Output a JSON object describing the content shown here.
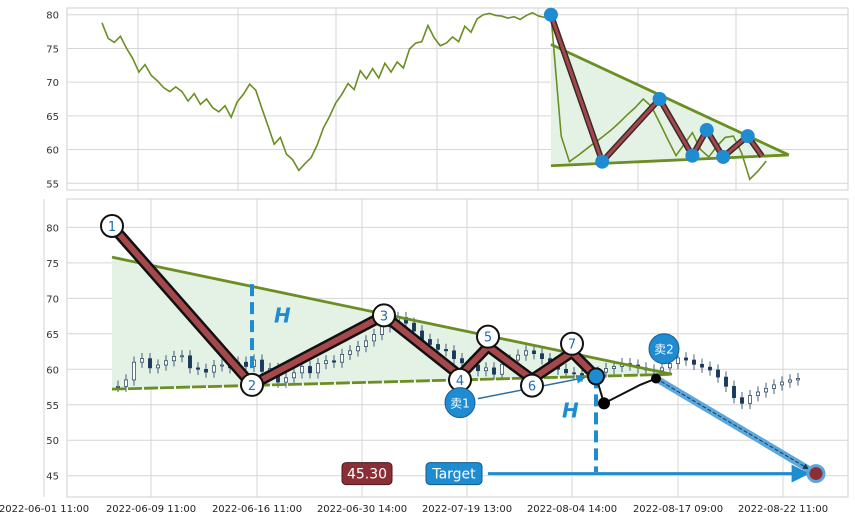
{
  "chart_data": [
    {
      "type": "line",
      "panel": "top",
      "title": "",
      "xlabel": "",
      "ylabel": "",
      "ylim": [
        54,
        81
      ],
      "y_ticks": [
        55,
        60,
        65,
        70,
        75,
        80
      ],
      "grid": true,
      "series": [
        {
          "color": "#6b8e23",
          "x": [
            0,
            3,
            6,
            9,
            12,
            15,
            18,
            21,
            24,
            27,
            30,
            33,
            36,
            39,
            42,
            45,
            48,
            51,
            54,
            57,
            60,
            63,
            66,
            69,
            72,
            75,
            78,
            81,
            84,
            87,
            90,
            93,
            96,
            99,
            102,
            105,
            108,
            111,
            114,
            117,
            120,
            123,
            126,
            129,
            132,
            135,
            138,
            141,
            144,
            147,
            150,
            153,
            156,
            159,
            162,
            165,
            168,
            171,
            174,
            177,
            180,
            183,
            186,
            189,
            192,
            195,
            198,
            201,
            204,
            207,
            210,
            213,
            216,
            219
          ],
          "values": [
            78.8,
            76.5,
            75.9,
            76.8,
            75.0,
            73.5,
            71.5,
            72.6,
            71.0,
            70.2,
            69.2,
            68.6,
            69.3,
            68.6,
            67.2,
            68.3,
            66.7,
            67.5,
            66.2,
            65.6,
            66.5,
            64.8,
            67.1,
            68.2,
            69.7,
            68.8,
            66.1,
            63.5,
            60.8,
            61.8,
            59.3,
            58.5,
            56.9,
            57.9,
            58.8,
            60.7,
            63.2,
            64.9,
            66.9,
            68.2,
            69.8,
            68.9,
            71.7,
            70.5,
            72.0,
            70.6,
            72.8,
            71.5,
            73.0,
            72.1,
            74.9,
            75.8,
            76.0,
            78.4,
            76.6,
            75.4,
            75.8,
            76.7,
            76.0,
            78.3,
            77.4,
            79.4,
            80.0,
            80.2,
            79.9,
            79.8,
            79.5,
            79.7,
            79.3,
            79.9,
            80.3,
            79.8,
            79.6,
            80.0
          ]
        },
        {
          "color": "#6b8e23",
          "x": [
            219,
            224,
            228,
            233,
            238,
            243,
            248,
            252,
            256,
            260,
            264,
            268,
            272,
            276,
            280,
            284,
            288,
            292,
            296,
            300,
            304,
            308,
            312,
            316,
            320,
            324
          ],
          "values": [
            80.0,
            62.0,
            58.2,
            59.3,
            60.5,
            61.6,
            62.8,
            63.9,
            65.1,
            66.2,
            67.5,
            66.4,
            64.0,
            61.5,
            59.1,
            60.8,
            62.5,
            60.0,
            58.9,
            60.5,
            61.8,
            62.0,
            59.5,
            55.6,
            56.8,
            58.3
          ]
        }
      ],
      "annotations": {
        "triangle_upper": [
          [
            219,
            75.6
          ],
          [
            335,
            59.2
          ]
        ],
        "triangle_lower": [
          [
            219,
            57.6
          ],
          [
            335,
            59.2
          ]
        ],
        "zigzag": [
          [
            219,
            80.0
          ],
          [
            244,
            58.2
          ],
          [
            272,
            67.5
          ],
          [
            288,
            59.1
          ],
          [
            295,
            62.9
          ],
          [
            303,
            58.9
          ],
          [
            315,
            62.0
          ],
          [
            322,
            59.0
          ]
        ],
        "pivots": [
          [
            219,
            80.0
          ],
          [
            244,
            58.2
          ],
          [
            272,
            67.5
          ],
          [
            288,
            59.1
          ],
          [
            295,
            62.9
          ],
          [
            303,
            58.9
          ],
          [
            315,
            62.0
          ]
        ]
      }
    },
    {
      "type": "candlestick",
      "panel": "bottom",
      "title": "",
      "xlabel": "",
      "ylabel": "",
      "ylim": [
        42,
        84
      ],
      "y_ticks": [
        45,
        50,
        55,
        60,
        65,
        70,
        75,
        80
      ],
      "x_tick_labels": [
        "2022-06-01 11:00",
        "2022-06-09 11:00",
        "2022-06-16 11:00",
        "2022-06-30 14:00",
        "2022-07-19 13:00",
        "2022-08-04 14:00",
        "2022-08-17 09:00",
        "2022-08-22 11:00"
      ],
      "grid": true,
      "series": [
        {
          "name": "",
          "color": "#1a3a5c",
          "x": [
            0,
            2,
            4,
            6,
            8,
            10,
            12,
            14,
            16,
            18,
            20,
            22,
            24,
            26,
            28,
            30,
            32,
            34,
            36,
            38,
            40,
            42,
            44,
            46,
            48,
            50,
            52,
            54,
            56,
            58,
            60,
            62,
            64,
            66,
            68,
            70,
            72,
            74,
            76,
            78,
            80,
            82,
            84,
            86,
            88,
            90,
            92,
            94,
            96,
            98,
            100,
            102,
            104,
            106,
            108,
            110,
            112,
            114,
            116,
            118,
            120,
            122,
            124,
            126,
            128,
            130,
            132,
            134,
            136,
            138,
            140,
            142,
            144,
            146,
            148,
            150,
            152,
            154,
            156,
            158,
            160,
            162,
            164,
            166,
            168,
            170
          ],
          "values": [
            57.6,
            58.5,
            61.0,
            61.5,
            60.2,
            60.6,
            61.2,
            61.8,
            61.9,
            60.2,
            60.0,
            59.6,
            60.5,
            60.6,
            60.2,
            61.0,
            60.4,
            61.3,
            59.7,
            60.1,
            58.2,
            58.8,
            59.5,
            60.4,
            59.5,
            60.8,
            61.2,
            61.0,
            62.1,
            62.6,
            63.2,
            64.0,
            64.9,
            66.0,
            66.6,
            67.3,
            66.5,
            65.4,
            64.2,
            63.5,
            62.8,
            62.6,
            61.5,
            60.9,
            60.6,
            59.8,
            60.2,
            59.3,
            60.7,
            61.3,
            62.0,
            62.6,
            62.2,
            61.5,
            60.7,
            60.0,
            59.5,
            59.4,
            59.0,
            59.2,
            59.6,
            60.1,
            60.4,
            60.8,
            60.6,
            60.2,
            59.9,
            59.8,
            60.2,
            60.8,
            61.6,
            61.3,
            60.7,
            60.3,
            59.9,
            58.9,
            57.6,
            56.0,
            55.2,
            56.3,
            56.8,
            57.3,
            57.8,
            58.2,
            58.5,
            58.7
          ]
        }
      ],
      "annotations": {
        "triangle_upper": [
          [
            0,
            75.8
          ],
          [
            140,
            59.3
          ]
        ],
        "triangle_lower": [
          [
            0,
            57.2
          ],
          [
            140,
            59.3
          ]
        ],
        "zigzag": [
          [
            0,
            80.2
          ],
          [
            35,
            57.8
          ],
          [
            68,
            67.6
          ],
          [
            87,
            59.1
          ],
          [
            94,
            63.2
          ],
          [
            105,
            58.6
          ],
          [
            115,
            62.4
          ],
          [
            121,
            59.0
          ]
        ],
        "pivot_labels": [
          "1",
          "2",
          "3",
          "4",
          "5",
          "6",
          "7"
        ],
        "pivots": [
          [
            0,
            80.2
          ],
          [
            35,
            57.8
          ],
          [
            68,
            67.6
          ],
          [
            87,
            58.5
          ],
          [
            94,
            64.6
          ],
          [
            105,
            57.7
          ],
          [
            115,
            63.6
          ]
        ],
        "height_label": "H",
        "height_left": [
          [
            35,
            72.0
          ],
          [
            35,
            58.0
          ]
        ],
        "height_right": [
          [
            121,
            59.0
          ],
          [
            121,
            45.5
          ]
        ],
        "breakout_path": [
          [
            121,
            59.0
          ],
          [
            123,
            55.2
          ],
          [
            132,
            57.8
          ],
          [
            136,
            58.7
          ]
        ],
        "projection_arrow": [
          [
            136,
            58.7
          ],
          [
            176,
            45.3
          ]
        ],
        "target_arrow": [
          [
            94,
            45.3
          ],
          [
            176,
            45.3
          ]
        ],
        "sell1_label": "卖1",
        "sell1_point": [
          87,
          55.3
        ],
        "sell1_arrow_to": [
          121,
          58.8
        ],
        "sell2_label": "卖2",
        "sell2_point": [
          138,
          62.9
        ],
        "target_point": [
          176,
          45.3
        ],
        "target_label": "Target",
        "target_value": "45.30"
      }
    }
  ],
  "colors": {
    "line": "#6b8e23",
    "triangle_fill": "#e4f2e6",
    "zigzag_outer": "#111111",
    "zigzag_inner": "#a5484c",
    "pivot_blue": "#1f8bd0",
    "dashed_blue": "#1f8bd0",
    "target_badge": "#8b2f36",
    "target_button": "#1f8bd0"
  }
}
